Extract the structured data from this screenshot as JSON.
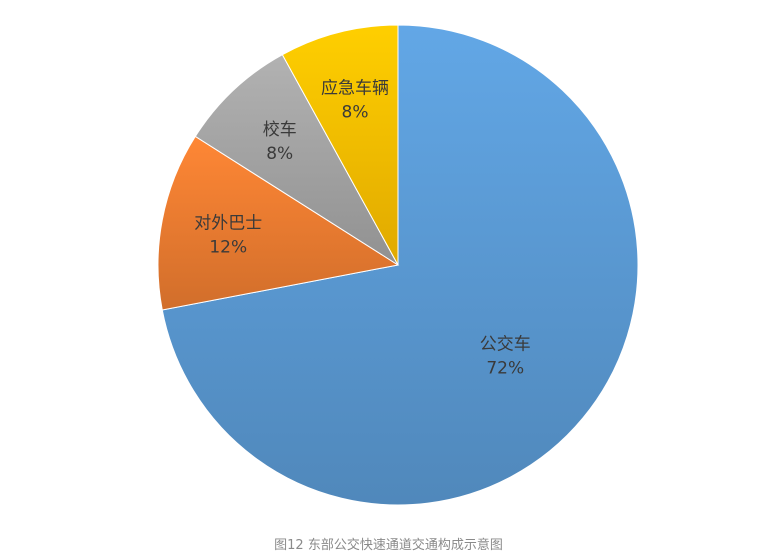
{
  "chart_data": {
    "type": "pie",
    "title": "",
    "slices": [
      {
        "name": "公交车",
        "value": 72,
        "value_label": "72%",
        "color": "#5B9BD5"
      },
      {
        "name": "对外巴士",
        "value": 12,
        "value_label": "12%",
        "color": "#ED7D31"
      },
      {
        "name": "校车",
        "value": 8,
        "value_label": "8%",
        "color": "#A5A5A5"
      },
      {
        "name": "应急车辆",
        "value": 8,
        "value_label": "8%",
        "color": "#FFC000"
      }
    ],
    "legend": "none",
    "data_labels": "category-and-percent"
  },
  "caption": "图12 东部公交快速通道交通构成示意图"
}
